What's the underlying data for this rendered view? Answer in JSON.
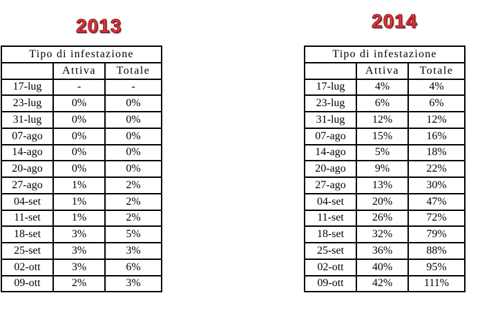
{
  "tables": [
    {
      "year": "2013",
      "header": "Tipo di infestazione",
      "col_active": "Attiva",
      "col_total": "Totale",
      "rows": [
        {
          "date": "17-lug",
          "active": "-",
          "total": "-"
        },
        {
          "date": "23-lug",
          "active": "0%",
          "total": "0%"
        },
        {
          "date": "31-lug",
          "active": "0%",
          "total": "0%"
        },
        {
          "date": "07-ago",
          "active": "0%",
          "total": "0%"
        },
        {
          "date": "14-ago",
          "active": "0%",
          "total": "0%"
        },
        {
          "date": "20-ago",
          "active": "0%",
          "total": "0%"
        },
        {
          "date": "27-ago",
          "active": "1%",
          "total": "2%"
        },
        {
          "date": "04-set",
          "active": "1%",
          "total": "2%"
        },
        {
          "date": "11-set",
          "active": "1%",
          "total": "2%"
        },
        {
          "date": "18-set",
          "active": "3%",
          "total": "5%"
        },
        {
          "date": "25-set",
          "active": "3%",
          "total": "3%"
        },
        {
          "date": "02-ott",
          "active": "3%",
          "total": "6%"
        },
        {
          "date": "09-ott",
          "active": "2%",
          "total": "3%"
        }
      ]
    },
    {
      "year": "2014",
      "header": "Tipo di infestazione",
      "col_active": "Attiva",
      "col_total": "Totale",
      "rows": [
        {
          "date": "17-lug",
          "active": "4%",
          "total": "4%"
        },
        {
          "date": "23-lug",
          "active": "6%",
          "total": "6%"
        },
        {
          "date": "31-lug",
          "active": "12%",
          "total": "12%"
        },
        {
          "date": "07-ago",
          "active": "15%",
          "total": "16%"
        },
        {
          "date": "14-ago",
          "active": "5%",
          "total": "18%"
        },
        {
          "date": "20-ago",
          "active": "9%",
          "total": "22%"
        },
        {
          "date": "27-ago",
          "active": "13%",
          "total": "30%"
        },
        {
          "date": "04-set",
          "active": "20%",
          "total": "47%"
        },
        {
          "date": "11-set",
          "active": "26%",
          "total": "72%"
        },
        {
          "date": "18-set",
          "active": "32%",
          "total": "79%"
        },
        {
          "date": "25-set",
          "active": "36%",
          "total": "88%"
        },
        {
          "date": "02-ott",
          "active": "40%",
          "total": "95%"
        },
        {
          "date": "09-ott",
          "active": "42%",
          "total": "111%"
        }
      ]
    }
  ]
}
